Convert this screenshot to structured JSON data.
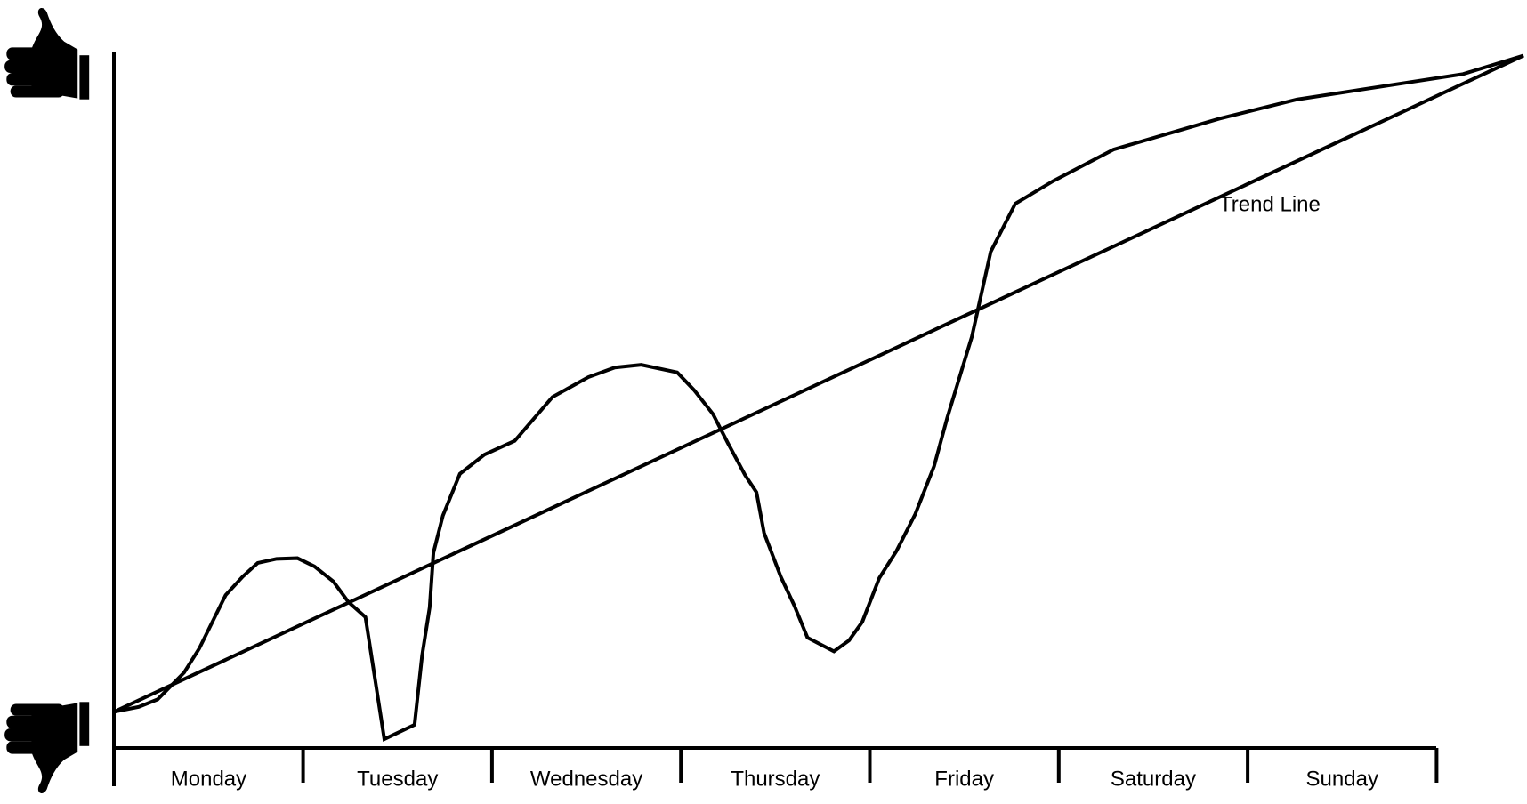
{
  "chart_data": {
    "type": "line",
    "categories": [
      "Monday",
      "Tuesday",
      "Wednesday",
      "Thursday",
      "Friday",
      "Saturday",
      "Sunday"
    ],
    "xlim": [
      0,
      7.46
    ],
    "ylim": [
      0,
      100
    ],
    "series": [
      {
        "color": "#000000",
        "x": [
          0,
          0.13,
          0.23,
          0.37,
          0.45,
          0.59,
          0.68,
          0.76,
          0.86,
          0.97,
          1.06,
          1.16,
          1.24,
          1.33,
          1.43,
          1.59,
          1.63,
          1.67,
          1.69,
          1.74,
          1.83,
          1.96,
          2.12,
          2.32,
          2.51,
          2.65,
          2.79,
          2.98,
          3.07,
          3.17,
          3.25,
          3.34,
          3.4,
          3.44,
          3.53,
          3.6,
          3.67,
          3.81,
          3.89,
          3.96,
          4.05,
          4.14,
          4.24,
          4.34,
          4.41,
          4.54,
          4.64,
          4.77,
          4.97,
          5.29,
          5.85,
          6.26,
          7.14,
          7.46
        ],
        "values": [
          4.3,
          5.0,
          6.1,
          10.0,
          13.5,
          21.3,
          24.0,
          26.0,
          26.6,
          26.7,
          25.5,
          23.3,
          20.3,
          18.1,
          0.3,
          2.4,
          12.5,
          19.5,
          27.5,
          32.9,
          39.0,
          41.8,
          43.8,
          50.2,
          53.1,
          54.5,
          54.9,
          53.8,
          51.2,
          47.7,
          43.4,
          38.8,
          36.3,
          30.4,
          23.9,
          19.8,
          15.1,
          13.1,
          14.7,
          17.4,
          23.8,
          27.7,
          33.1,
          40.1,
          47.2,
          59.0,
          71.4,
          78.4,
          81.7,
          86.3,
          90.8,
          93.6,
          97.3,
          100.0
        ]
      },
      {
        "name": "Trend Line",
        "color": "#000000",
        "x": [
          0,
          7.46
        ],
        "values": [
          4.3,
          100.0
        ]
      }
    ]
  }
}
